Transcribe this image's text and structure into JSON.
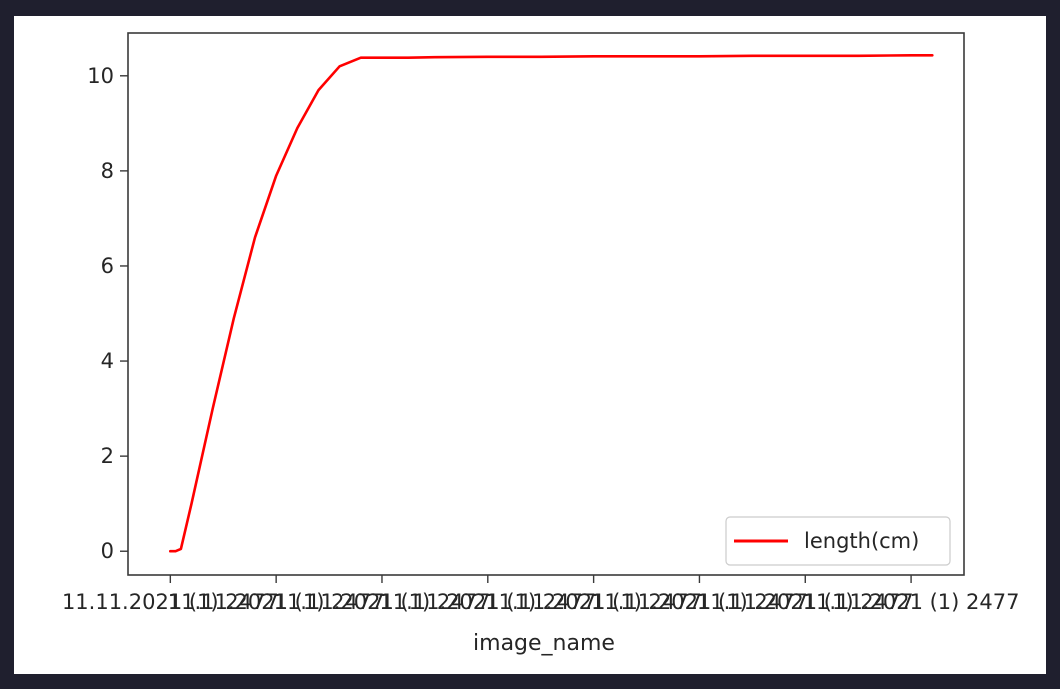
{
  "chart_data": {
    "type": "line",
    "xlabel": "image_name",
    "ylabel": "",
    "ylim": [
      -0.5,
      10.9
    ],
    "yticks": [
      0,
      2,
      4,
      6,
      8,
      10
    ],
    "xticks": [
      "11.11.2021 (1) 2477",
      "11.11.2021 (1) 2477",
      "11.11.2021 (1) 2477",
      "11.11.2021 (1) 2477",
      "11.11.2021 (1) 2477",
      "11.11.2021 (1) 2477",
      "11.11.2021 (1) 2477",
      "11.11.2021 (1) 2477"
    ],
    "grid": false,
    "legend_position": "bottom-right",
    "series": [
      {
        "name": "length(cm)",
        "color": "#ff0000",
        "x": [
          0,
          0.05,
          0.1,
          0.2,
          0.4,
          0.6,
          0.8,
          1.0,
          1.2,
          1.4,
          1.6,
          1.8,
          2.0,
          2.2,
          2.25,
          2.5,
          3.0,
          3.5,
          4.0,
          4.5,
          5.0,
          5.5,
          6.0,
          6.5,
          7.0,
          7.2
        ],
        "y": [
          0.0,
          0.0,
          0.05,
          1.0,
          3.0,
          4.9,
          6.6,
          7.9,
          8.9,
          9.7,
          10.2,
          10.38,
          10.38,
          10.38,
          10.38,
          10.39,
          10.4,
          10.4,
          10.41,
          10.41,
          10.41,
          10.42,
          10.42,
          10.42,
          10.43,
          10.43
        ]
      }
    ]
  }
}
